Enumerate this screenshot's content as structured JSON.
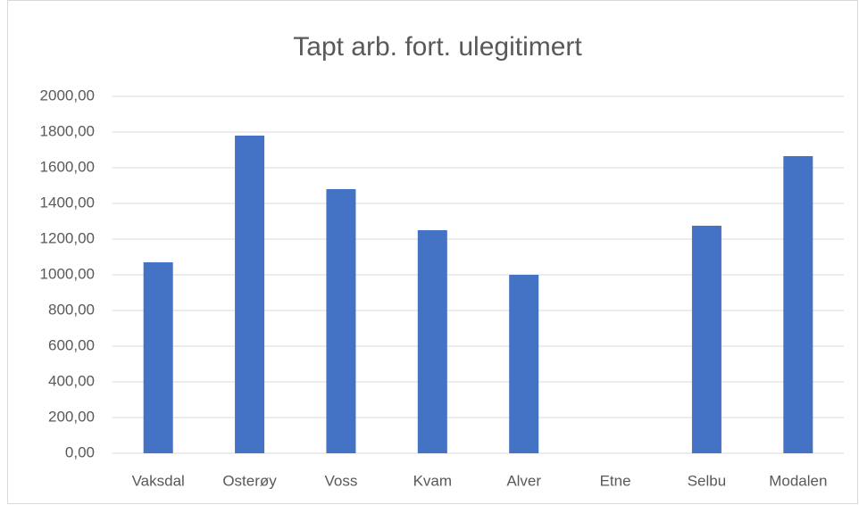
{
  "chart_data": {
    "type": "bar",
    "title": "Tapt arb. fort. ulegitimert",
    "categories": [
      "Vaksdal",
      "Osterøy",
      "Voss",
      "Kvam",
      "Alver",
      "Etne",
      "Selbu",
      "Modalen"
    ],
    "values": [
      1070,
      1780,
      1480,
      1250,
      1000,
      null,
      1275,
      1665
    ],
    "color": "#4472c4",
    "ylim": [
      0,
      2000
    ],
    "yticks": [
      {
        "value": 0,
        "label": "0,00"
      },
      {
        "value": 200,
        "label": "200,00"
      },
      {
        "value": 400,
        "label": "400,00"
      },
      {
        "value": 600,
        "label": "600,00"
      },
      {
        "value": 800,
        "label": "800,00"
      },
      {
        "value": 1000,
        "label": "1000,00"
      },
      {
        "value": 1200,
        "label": "1200,00"
      },
      {
        "value": 1400,
        "label": "1400,00"
      },
      {
        "value": 1600,
        "label": "1600,00"
      },
      {
        "value": 1800,
        "label": "1800,00"
      },
      {
        "value": 2000,
        "label": "2000,00"
      }
    ],
    "grid": true
  }
}
